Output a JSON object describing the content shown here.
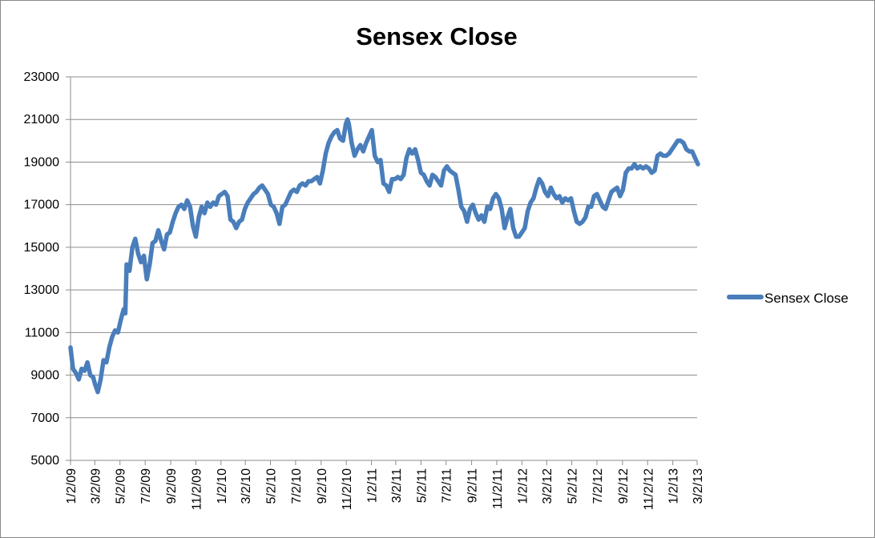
{
  "chart_data": {
    "type": "line",
    "title": "Sensex Close",
    "xlabel": "",
    "ylabel": "",
    "ylim": [
      5000,
      23000
    ],
    "yticks": [
      5000,
      7000,
      9000,
      11000,
      13000,
      15000,
      17000,
      19000,
      21000,
      23000
    ],
    "xticks": [
      "1/2/09",
      "3/2/09",
      "5/2/09",
      "7/2/09",
      "9/2/09",
      "11/2/09",
      "1/2/10",
      "3/2/10",
      "5/2/10",
      "7/2/10",
      "9/2/10",
      "11/2/10",
      "1/2/11",
      "3/2/11",
      "5/2/11",
      "7/2/11",
      "9/2/11",
      "11/2/11",
      "1/2/12",
      "3/2/12",
      "5/2/12",
      "7/2/12",
      "9/2/12",
      "11/2/12",
      "1/2/13",
      "3/2/13"
    ],
    "grid": "horizontal",
    "legend_position": "right",
    "series": [
      {
        "name": "Sensex Close",
        "color": "#4a7ebb",
        "points": [
          [
            "2009-01-02",
            10300
          ],
          [
            "2009-01-08",
            9300
          ],
          [
            "2009-01-15",
            9100
          ],
          [
            "2009-01-22",
            8800
          ],
          [
            "2009-01-29",
            9300
          ],
          [
            "2009-02-05",
            9200
          ],
          [
            "2009-02-12",
            9600
          ],
          [
            "2009-02-19",
            9000
          ],
          [
            "2009-02-26",
            8900
          ],
          [
            "2009-03-02",
            8600
          ],
          [
            "2009-03-09",
            8200
          ],
          [
            "2009-03-16",
            8800
          ],
          [
            "2009-03-23",
            9700
          ],
          [
            "2009-03-30",
            9600
          ],
          [
            "2009-04-06",
            10300
          ],
          [
            "2009-04-13",
            10800
          ],
          [
            "2009-04-20",
            11100
          ],
          [
            "2009-04-27",
            11000
          ],
          [
            "2009-05-04",
            11600
          ],
          [
            "2009-05-11",
            12100
          ],
          [
            "2009-05-15",
            11900
          ],
          [
            "2009-05-18",
            14200
          ],
          [
            "2009-05-25",
            13900
          ],
          [
            "2009-06-01",
            15000
          ],
          [
            "2009-06-08",
            15400
          ],
          [
            "2009-06-15",
            14700
          ],
          [
            "2009-06-22",
            14300
          ],
          [
            "2009-06-29",
            14600
          ],
          [
            "2009-07-06",
            13500
          ],
          [
            "2009-07-13",
            14200
          ],
          [
            "2009-07-20",
            15200
          ],
          [
            "2009-07-27",
            15300
          ],
          [
            "2009-08-03",
            15800
          ],
          [
            "2009-08-10",
            15300
          ],
          [
            "2009-08-17",
            14900
          ],
          [
            "2009-08-24",
            15600
          ],
          [
            "2009-08-31",
            15700
          ],
          [
            "2009-09-07",
            16200
          ],
          [
            "2009-09-14",
            16600
          ],
          [
            "2009-09-21",
            16900
          ],
          [
            "2009-09-28",
            17000
          ],
          [
            "2009-10-05",
            16800
          ],
          [
            "2009-10-12",
            17200
          ],
          [
            "2009-10-19",
            16900
          ],
          [
            "2009-10-26",
            16000
          ],
          [
            "2009-11-02",
            15500
          ],
          [
            "2009-11-09",
            16400
          ],
          [
            "2009-11-16",
            16900
          ],
          [
            "2009-11-23",
            16600
          ],
          [
            "2009-11-30",
            17100
          ],
          [
            "2009-12-07",
            16900
          ],
          [
            "2009-12-14",
            17100
          ],
          [
            "2009-12-21",
            17000
          ],
          [
            "2009-12-28",
            17400
          ],
          [
            "2010-01-04",
            17500
          ],
          [
            "2010-01-11",
            17600
          ],
          [
            "2010-01-18",
            17400
          ],
          [
            "2010-01-25",
            16300
          ],
          [
            "2010-02-01",
            16200
          ],
          [
            "2010-02-08",
            15900
          ],
          [
            "2010-02-15",
            16200
          ],
          [
            "2010-02-22",
            16300
          ],
          [
            "2010-03-01",
            16800
          ],
          [
            "2010-03-08",
            17100
          ],
          [
            "2010-03-15",
            17300
          ],
          [
            "2010-03-22",
            17500
          ],
          [
            "2010-03-29",
            17600
          ],
          [
            "2010-04-05",
            17800
          ],
          [
            "2010-04-12",
            17900
          ],
          [
            "2010-04-19",
            17700
          ],
          [
            "2010-04-26",
            17500
          ],
          [
            "2010-05-03",
            17000
          ],
          [
            "2010-05-10",
            16900
          ],
          [
            "2010-05-17",
            16600
          ],
          [
            "2010-05-24",
            16100
          ],
          [
            "2010-05-31",
            16900
          ],
          [
            "2010-06-07",
            17000
          ],
          [
            "2010-06-14",
            17300
          ],
          [
            "2010-06-21",
            17600
          ],
          [
            "2010-06-28",
            17700
          ],
          [
            "2010-07-05",
            17600
          ],
          [
            "2010-07-12",
            17900
          ],
          [
            "2010-07-19",
            18000
          ],
          [
            "2010-07-26",
            17900
          ],
          [
            "2010-08-02",
            18100
          ],
          [
            "2010-08-09",
            18100
          ],
          [
            "2010-08-16",
            18200
          ],
          [
            "2010-08-23",
            18300
          ],
          [
            "2010-08-30",
            18000
          ],
          [
            "2010-09-06",
            18600
          ],
          [
            "2010-09-13",
            19400
          ],
          [
            "2010-09-20",
            19900
          ],
          [
            "2010-09-27",
            20200
          ],
          [
            "2010-10-04",
            20400
          ],
          [
            "2010-10-11",
            20500
          ],
          [
            "2010-10-18",
            20100
          ],
          [
            "2010-10-25",
            20000
          ],
          [
            "2010-11-01",
            20800
          ],
          [
            "2010-11-05",
            21000
          ],
          [
            "2010-11-08",
            20800
          ],
          [
            "2010-11-15",
            19900
          ],
          [
            "2010-11-22",
            19300
          ],
          [
            "2010-11-29",
            19600
          ],
          [
            "2010-12-06",
            19800
          ],
          [
            "2010-12-13",
            19500
          ],
          [
            "2010-12-20",
            19900
          ],
          [
            "2010-12-27",
            20200
          ],
          [
            "2011-01-03",
            20500
          ],
          [
            "2011-01-10",
            19300
          ],
          [
            "2011-01-17",
            19000
          ],
          [
            "2011-01-24",
            19100
          ],
          [
            "2011-01-31",
            18000
          ],
          [
            "2011-02-07",
            17900
          ],
          [
            "2011-02-14",
            17600
          ],
          [
            "2011-02-21",
            18200
          ],
          [
            "2011-02-28",
            18200
          ],
          [
            "2011-03-07",
            18300
          ],
          [
            "2011-03-14",
            18200
          ],
          [
            "2011-03-21",
            18400
          ],
          [
            "2011-03-28",
            19200
          ],
          [
            "2011-04-04",
            19600
          ],
          [
            "2011-04-11",
            19400
          ],
          [
            "2011-04-18",
            19600
          ],
          [
            "2011-04-25",
            19100
          ],
          [
            "2011-05-02",
            18500
          ],
          [
            "2011-05-09",
            18400
          ],
          [
            "2011-05-16",
            18100
          ],
          [
            "2011-05-23",
            17900
          ],
          [
            "2011-05-30",
            18400
          ],
          [
            "2011-06-06",
            18300
          ],
          [
            "2011-06-13",
            18100
          ],
          [
            "2011-06-20",
            17900
          ],
          [
            "2011-06-27",
            18600
          ],
          [
            "2011-07-04",
            18800
          ],
          [
            "2011-07-11",
            18600
          ],
          [
            "2011-07-18",
            18500
          ],
          [
            "2011-07-25",
            18400
          ],
          [
            "2011-08-01",
            17700
          ],
          [
            "2011-08-08",
            16900
          ],
          [
            "2011-08-15",
            16700
          ],
          [
            "2011-08-22",
            16200
          ],
          [
            "2011-08-29",
            16800
          ],
          [
            "2011-09-05",
            17000
          ],
          [
            "2011-09-12",
            16600
          ],
          [
            "2011-09-19",
            16300
          ],
          [
            "2011-09-26",
            16500
          ],
          [
            "2011-10-03",
            16200
          ],
          [
            "2011-10-10",
            16900
          ],
          [
            "2011-10-17",
            16800
          ],
          [
            "2011-10-24",
            17300
          ],
          [
            "2011-10-31",
            17500
          ],
          [
            "2011-11-07",
            17300
          ],
          [
            "2011-11-14",
            16800
          ],
          [
            "2011-11-21",
            15900
          ],
          [
            "2011-11-28",
            16400
          ],
          [
            "2011-12-05",
            16800
          ],
          [
            "2011-12-12",
            15900
          ],
          [
            "2011-12-19",
            15500
          ],
          [
            "2011-12-26",
            15500
          ],
          [
            "2012-01-02",
            15700
          ],
          [
            "2012-01-09",
            15900
          ],
          [
            "2012-01-16",
            16700
          ],
          [
            "2012-01-23",
            17100
          ],
          [
            "2012-01-30",
            17300
          ],
          [
            "2012-02-06",
            17800
          ],
          [
            "2012-02-13",
            18200
          ],
          [
            "2012-02-20",
            18000
          ],
          [
            "2012-02-27",
            17600
          ],
          [
            "2012-03-05",
            17400
          ],
          [
            "2012-03-12",
            17800
          ],
          [
            "2012-03-19",
            17500
          ],
          [
            "2012-03-26",
            17300
          ],
          [
            "2012-04-02",
            17400
          ],
          [
            "2012-04-09",
            17100
          ],
          [
            "2012-04-16",
            17300
          ],
          [
            "2012-04-23",
            17200
          ],
          [
            "2012-04-30",
            17300
          ],
          [
            "2012-05-07",
            16700
          ],
          [
            "2012-05-14",
            16200
          ],
          [
            "2012-05-21",
            16100
          ],
          [
            "2012-05-28",
            16200
          ],
          [
            "2012-06-04",
            16400
          ],
          [
            "2012-06-11",
            16900
          ],
          [
            "2012-06-18",
            16900
          ],
          [
            "2012-06-25",
            17400
          ],
          [
            "2012-07-02",
            17500
          ],
          [
            "2012-07-09",
            17200
          ],
          [
            "2012-07-16",
            16900
          ],
          [
            "2012-07-23",
            16800
          ],
          [
            "2012-07-30",
            17200
          ],
          [
            "2012-08-06",
            17600
          ],
          [
            "2012-08-13",
            17700
          ],
          [
            "2012-08-20",
            17800
          ],
          [
            "2012-08-27",
            17400
          ],
          [
            "2012-09-03",
            17700
          ],
          [
            "2012-09-10",
            18500
          ],
          [
            "2012-09-17",
            18700
          ],
          [
            "2012-09-24",
            18700
          ],
          [
            "2012-10-01",
            18900
          ],
          [
            "2012-10-08",
            18700
          ],
          [
            "2012-10-15",
            18800
          ],
          [
            "2012-10-22",
            18700
          ],
          [
            "2012-10-29",
            18800
          ],
          [
            "2012-11-05",
            18700
          ],
          [
            "2012-11-12",
            18500
          ],
          [
            "2012-11-19",
            18600
          ],
          [
            "2012-11-26",
            19300
          ],
          [
            "2012-12-03",
            19400
          ],
          [
            "2012-12-10",
            19300
          ],
          [
            "2012-12-17",
            19300
          ],
          [
            "2012-12-24",
            19400
          ],
          [
            "2012-12-31",
            19600
          ],
          [
            "2013-01-07",
            19800
          ],
          [
            "2013-01-14",
            20000
          ],
          [
            "2013-01-21",
            20000
          ],
          [
            "2013-01-28",
            19900
          ],
          [
            "2013-02-04",
            19600
          ],
          [
            "2013-02-11",
            19500
          ],
          [
            "2013-02-18",
            19500
          ],
          [
            "2013-02-25",
            19200
          ],
          [
            "2013-03-04",
            18900
          ]
        ]
      }
    ]
  }
}
